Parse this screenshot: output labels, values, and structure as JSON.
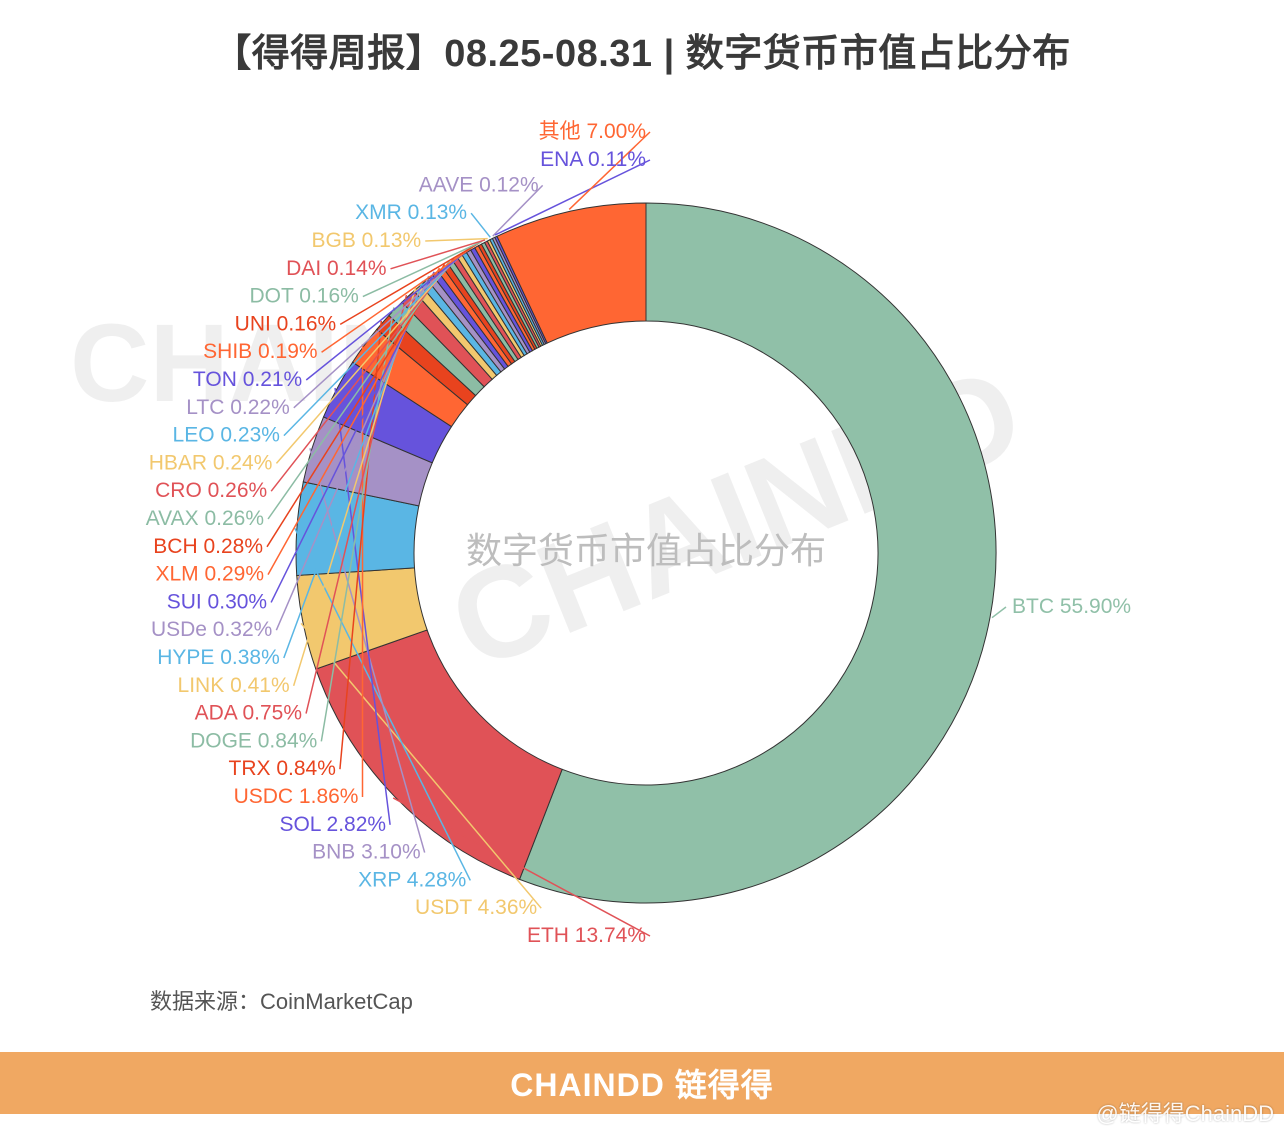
{
  "title": "【得得周报】08.25-08.31 | 数字货币市值占比分布",
  "source": "数据来源：CoinMarketCap",
  "footer": {
    "logo": "CHAINDD 链得得",
    "handle": "@链得得ChainDD",
    "color": "#f0a862"
  },
  "watermarks": {
    "left": "CHAIN",
    "right": "CHAINDD",
    "cn": "链得得"
  },
  "chart_data": {
    "type": "pie",
    "variant": "donut",
    "center_label": "数字货币市值占比分布",
    "slices": [
      {
        "name": "BTC",
        "value": 55.9,
        "label": "BTC 55.90%",
        "color": "#90c0a8"
      },
      {
        "name": "ETH",
        "value": 13.74,
        "label": "ETH 13.74%",
        "color": "#e05257"
      },
      {
        "name": "USDT",
        "value": 4.36,
        "label": "USDT 4.36%",
        "color": "#f2c86e"
      },
      {
        "name": "XRP",
        "value": 4.28,
        "label": "XRP 4.28%",
        "color": "#5ab6e4"
      },
      {
        "name": "BNB",
        "value": 3.1,
        "label": "BNB 3.10%",
        "color": "#a591c6"
      },
      {
        "name": "SOL",
        "value": 2.82,
        "label": "SOL 2.82%",
        "color": "#6653dc"
      },
      {
        "name": "USDC",
        "value": 1.86,
        "label": "USDC 1.86%",
        "color": "#ff6633"
      },
      {
        "name": "TRX",
        "value": 0.84,
        "label": "TRX 0.84%",
        "color": "#e8431e"
      },
      {
        "name": "DOGE",
        "value": 0.84,
        "label": "DOGE 0.84%",
        "color": "#8cbca4"
      },
      {
        "name": "ADA",
        "value": 0.75,
        "label": "ADA 0.75%",
        "color": "#e05257"
      },
      {
        "name": "LINK",
        "value": 0.41,
        "label": "LINK 0.41%",
        "color": "#f2c86e"
      },
      {
        "name": "HYPE",
        "value": 0.38,
        "label": "HYPE 0.38%",
        "color": "#5ab6e4"
      },
      {
        "name": "USDe",
        "value": 0.32,
        "label": "USDe 0.32%",
        "color": "#a591c6"
      },
      {
        "name": "SUI",
        "value": 0.3,
        "label": "SUI 0.30%",
        "color": "#6653dc"
      },
      {
        "name": "XLM",
        "value": 0.29,
        "label": "XLM 0.29%",
        "color": "#ff6633"
      },
      {
        "name": "BCH",
        "value": 0.28,
        "label": "BCH 0.28%",
        "color": "#e8431e"
      },
      {
        "name": "AVAX",
        "value": 0.26,
        "label": "AVAX 0.26%",
        "color": "#8cbca4"
      },
      {
        "name": "CRO",
        "value": 0.26,
        "label": "CRO 0.26%",
        "color": "#e05257"
      },
      {
        "name": "HBAR",
        "value": 0.24,
        "label": "HBAR 0.24%",
        "color": "#f2c86e"
      },
      {
        "name": "LEO",
        "value": 0.23,
        "label": "LEO 0.23%",
        "color": "#5ab6e4"
      },
      {
        "name": "LTC",
        "value": 0.22,
        "label": "LTC 0.22%",
        "color": "#a591c6"
      },
      {
        "name": "TON",
        "value": 0.21,
        "label": "TON 0.21%",
        "color": "#6653dc"
      },
      {
        "name": "SHIB",
        "value": 0.19,
        "label": "SHIB 0.19%",
        "color": "#ff6633"
      },
      {
        "name": "UNI",
        "value": 0.16,
        "label": "UNI 0.16%",
        "color": "#e8431e"
      },
      {
        "name": "DOT",
        "value": 0.16,
        "label": "DOT 0.16%",
        "color": "#8cbca4"
      },
      {
        "name": "DAI",
        "value": 0.14,
        "label": "DAI 0.14%",
        "color": "#e05257"
      },
      {
        "name": "BGB",
        "value": 0.13,
        "label": "BGB 0.13%",
        "color": "#f2c86e"
      },
      {
        "name": "XMR",
        "value": 0.13,
        "label": "XMR 0.13%",
        "color": "#5ab6e4"
      },
      {
        "name": "AAVE",
        "value": 0.12,
        "label": "AAVE 0.12%",
        "color": "#a591c6"
      },
      {
        "name": "ENA",
        "value": 0.11,
        "label": "ENA 0.11%",
        "color": "#6653dc"
      },
      {
        "name": "其他",
        "value": 7.0,
        "label": "其他 7.00%",
        "color": "#ff6633"
      }
    ]
  }
}
